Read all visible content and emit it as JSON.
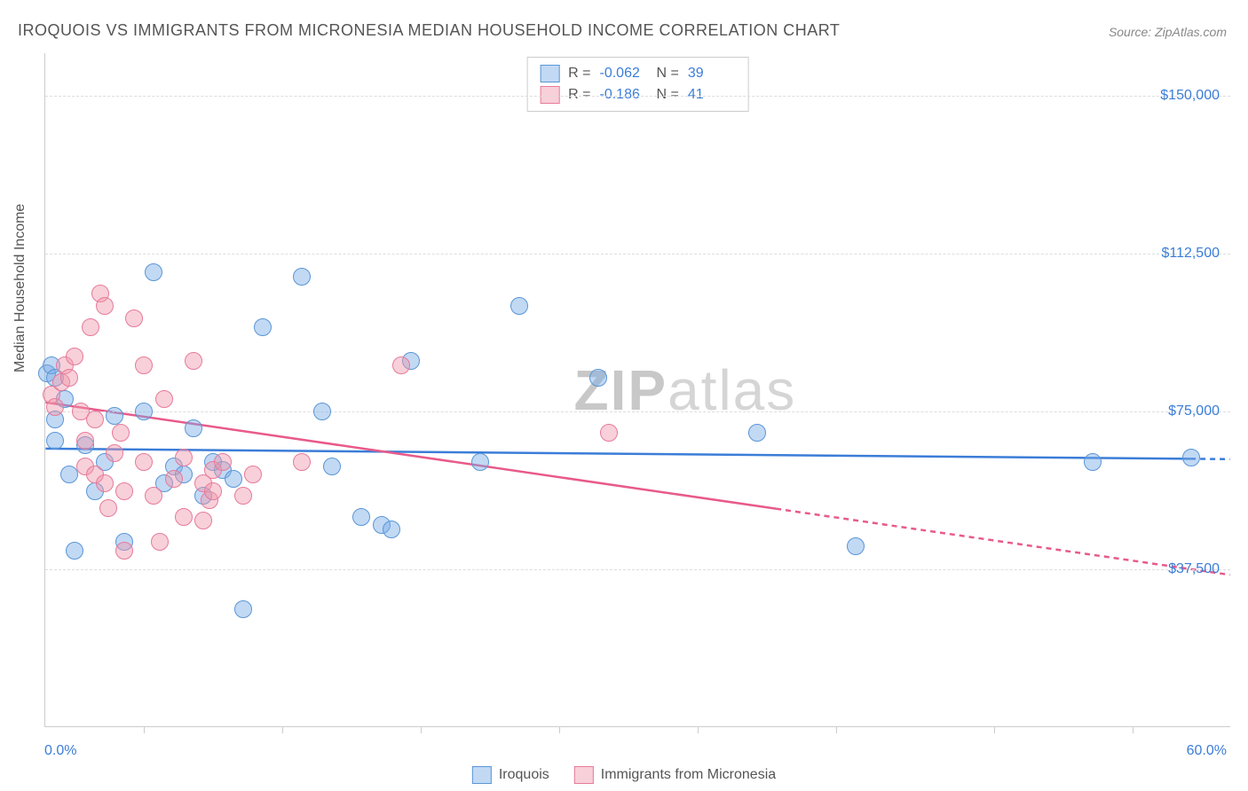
{
  "title": "IROQUOIS VS IMMIGRANTS FROM MICRONESIA MEDIAN HOUSEHOLD INCOME CORRELATION CHART",
  "source": "Source: ZipAtlas.com",
  "watermark": {
    "zip": "ZIP",
    "atlas": "atlas"
  },
  "y_axis": {
    "label": "Median Household Income",
    "ticks": [
      {
        "value": 37500,
        "label": "$37,500"
      },
      {
        "value": 75000,
        "label": "$75,000"
      },
      {
        "value": 112500,
        "label": "$112,500"
      },
      {
        "value": 150000,
        "label": "$150,000"
      }
    ],
    "min": 0,
    "max": 160000
  },
  "x_axis": {
    "min": 0,
    "max": 60,
    "min_label": "0.0%",
    "max_label": "60.0%",
    "tick_positions": [
      5,
      12,
      19,
      26,
      33,
      40,
      48,
      55
    ]
  },
  "series": [
    {
      "name": "Iroquois",
      "color_fill": "rgba(120,170,230,0.45)",
      "color_stroke": "#5a96d6",
      "r_value": "-0.062",
      "n_value": "39",
      "marker_radius": 10,
      "regression": {
        "y_at_xmin": 66000,
        "y_at_xmax": 63500,
        "solid_until_x": 58
      },
      "points": [
        [
          0.1,
          84000
        ],
        [
          0.3,
          86000
        ],
        [
          0.5,
          83000
        ],
        [
          0.5,
          73000
        ],
        [
          0.5,
          68000
        ],
        [
          1.0,
          78000
        ],
        [
          1.2,
          60000
        ],
        [
          1.5,
          42000
        ],
        [
          2.0,
          67000
        ],
        [
          2.5,
          56000
        ],
        [
          3.0,
          63000
        ],
        [
          3.5,
          74000
        ],
        [
          4.0,
          44000
        ],
        [
          5.0,
          75000
        ],
        [
          5.5,
          108000
        ],
        [
          6.0,
          58000
        ],
        [
          6.5,
          62000
        ],
        [
          7.0,
          60000
        ],
        [
          7.5,
          71000
        ],
        [
          8.0,
          55000
        ],
        [
          8.5,
          63000
        ],
        [
          9.0,
          61000
        ],
        [
          9.5,
          59000
        ],
        [
          10.0,
          28000
        ],
        [
          11.0,
          95000
        ],
        [
          13.0,
          107000
        ],
        [
          14.0,
          75000
        ],
        [
          14.5,
          62000
        ],
        [
          16.0,
          50000
        ],
        [
          17.0,
          48000
        ],
        [
          17.5,
          47000
        ],
        [
          18.5,
          87000
        ],
        [
          22.0,
          63000
        ],
        [
          24.0,
          100000
        ],
        [
          28.0,
          83000
        ],
        [
          36.0,
          70000
        ],
        [
          41.0,
          43000
        ],
        [
          53.0,
          63000
        ],
        [
          58.0,
          64000
        ]
      ]
    },
    {
      "name": "Immigrants from Micronesia",
      "color_fill": "rgba(240,150,170,0.45)",
      "color_stroke": "#e77a9a",
      "r_value": "-0.186",
      "n_value": "41",
      "marker_radius": 10,
      "regression": {
        "y_at_xmin": 77000,
        "y_at_xmax": 36000,
        "solid_until_x": 37
      },
      "points": [
        [
          0.3,
          79000
        ],
        [
          0.5,
          76000
        ],
        [
          0.8,
          82000
        ],
        [
          1.0,
          86000
        ],
        [
          1.2,
          83000
        ],
        [
          1.5,
          88000
        ],
        [
          1.8,
          75000
        ],
        [
          2.0,
          68000
        ],
        [
          2.0,
          62000
        ],
        [
          2.3,
          95000
        ],
        [
          2.5,
          73000
        ],
        [
          2.5,
          60000
        ],
        [
          2.8,
          103000
        ],
        [
          3.0,
          100000
        ],
        [
          3.0,
          58000
        ],
        [
          3.2,
          52000
        ],
        [
          3.5,
          65000
        ],
        [
          3.8,
          70000
        ],
        [
          4.0,
          56000
        ],
        [
          4.0,
          42000
        ],
        [
          4.5,
          97000
        ],
        [
          5.0,
          86000
        ],
        [
          5.0,
          63000
        ],
        [
          5.5,
          55000
        ],
        [
          5.8,
          44000
        ],
        [
          6.0,
          78000
        ],
        [
          6.5,
          59000
        ],
        [
          7.0,
          50000
        ],
        [
          7.0,
          64000
        ],
        [
          7.5,
          87000
        ],
        [
          8.0,
          58000
        ],
        [
          8.0,
          49000
        ],
        [
          8.3,
          54000
        ],
        [
          8.5,
          56000
        ],
        [
          8.5,
          61000
        ],
        [
          9.0,
          63000
        ],
        [
          10.0,
          55000
        ],
        [
          10.5,
          60000
        ],
        [
          13.0,
          63000
        ],
        [
          18.0,
          86000
        ],
        [
          28.5,
          70000
        ]
      ]
    }
  ],
  "legend": {
    "series1_label": "Iroquois",
    "series2_label": "Immigrants from Micronesia"
  },
  "colors": {
    "title": "#555555",
    "source": "#888888",
    "axis_text": "#555555",
    "tick_value": "#3b7dd8",
    "grid": "#dddddd",
    "border": "#cccccc",
    "blue_line": "#3b7dd8",
    "pink_line": "#e85a8a"
  }
}
